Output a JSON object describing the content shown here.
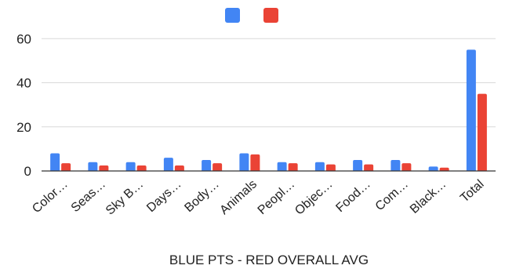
{
  "chart_data": {
    "type": "bar",
    "xlabel": "BLUE PTS - RED OVERALL AVG",
    "ylabel": "",
    "ylim": [
      0,
      64
    ],
    "yticks": [
      0,
      20,
      40,
      60
    ],
    "grid": true,
    "legend": "top-center",
    "categories": [
      "Color…",
      "Seas…",
      "Sky B…",
      "Days…",
      "Body…",
      "Animals",
      "Peopl…",
      "Objec…",
      "Food…",
      "Com…",
      "Black…",
      "Total"
    ],
    "series": [
      {
        "color": "#4285f4",
        "values": [
          8,
          4,
          4,
          6,
          5,
          8,
          4,
          4,
          5,
          5,
          2,
          55
        ]
      },
      {
        "color": "#ea4335",
        "values": [
          3.5,
          2.5,
          2.5,
          2.5,
          3.5,
          7.5,
          3.5,
          3,
          3,
          3.5,
          1.5,
          35
        ]
      }
    ]
  }
}
